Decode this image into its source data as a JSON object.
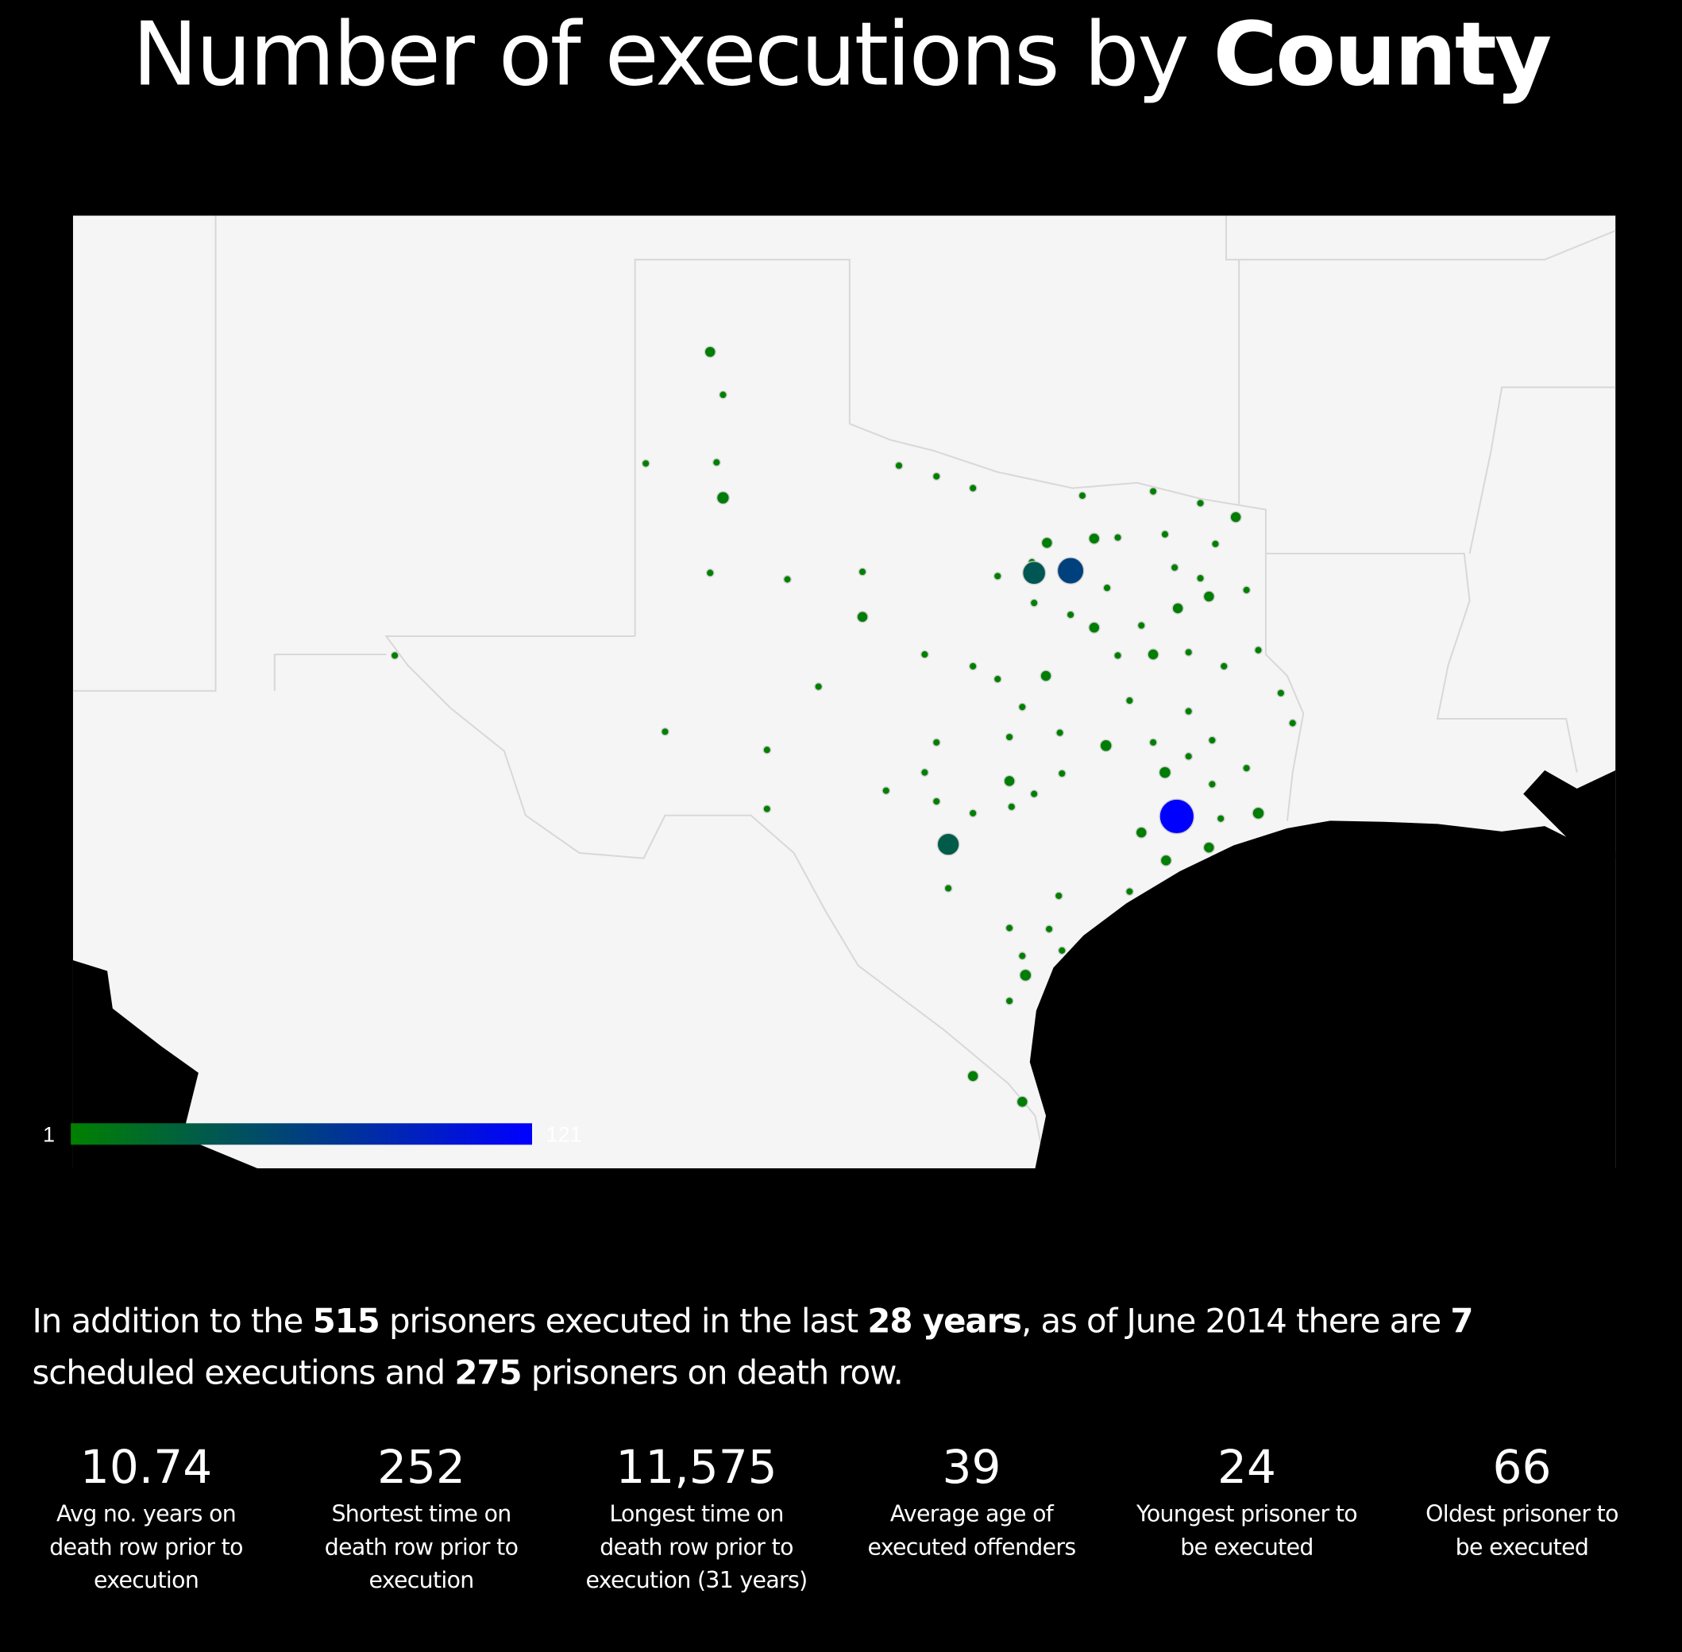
{
  "title": {
    "prefix": "Number of executions by ",
    "emphasis": "County"
  },
  "legend": {
    "min": "1",
    "max": "121",
    "color_min": "#008000",
    "color_max": "#0000ff"
  },
  "map": {
    "land_color": "#f5f5f5",
    "water_color": "#000000",
    "border_color": "#d8d8d8",
    "county_counts": [
      3,
      1,
      1,
      1,
      5,
      1,
      1,
      1,
      3,
      1,
      1,
      1,
      1,
      1,
      1,
      3,
      3,
      3,
      1,
      1,
      1,
      1,
      40,
      60,
      1,
      1,
      1,
      1,
      1,
      3,
      3,
      1,
      1,
      3,
      1,
      1,
      3,
      1,
      1,
      1,
      1,
      1,
      1,
      3,
      1,
      1,
      1,
      1,
      1,
      1,
      1,
      1,
      1,
      1,
      1,
      1,
      4,
      1,
      1,
      1,
      4,
      1,
      1,
      1,
      3,
      1,
      1,
      1,
      1,
      1,
      1,
      1,
      121,
      1,
      4,
      3,
      3,
      35,
      3,
      1,
      1,
      1,
      1,
      1,
      1,
      1,
      4,
      1,
      3,
      3
    ]
  },
  "summary": {
    "t1": "In addition to the ",
    "executed": "515",
    "t2": " prisoners executed in the last ",
    "years": "28 years",
    "t3": ", as of June 2014 there are ",
    "scheduled": "7",
    "t4": " scheduled executions and ",
    "death_row": "275",
    "t5": " prisoners on death row."
  },
  "stats": [
    {
      "value": "10.74",
      "label": "Avg no. years on death row prior to execution"
    },
    {
      "value": "252",
      "label": "Shortest time on death row prior to execution"
    },
    {
      "value": "11,575",
      "label": "Longest time on death row prior to execution (31 years)"
    },
    {
      "value": "39",
      "label": "Average age of executed offenders"
    },
    {
      "value": "24",
      "label": "Youngest prisoner to be executed"
    },
    {
      "value": "66",
      "label": "Oldest prisoner to be executed"
    }
  ]
}
